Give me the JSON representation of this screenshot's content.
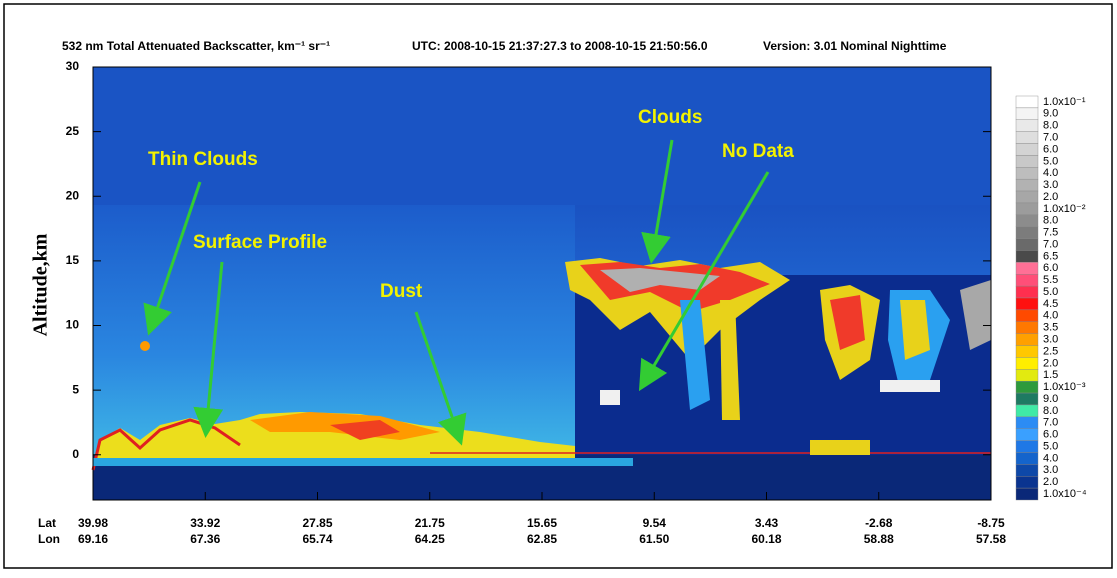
{
  "chart_data": {
    "type": "heatmap",
    "title": "532 nm Total Attenuated Backscatter, km⁻¹ sr⁻¹",
    "time_range": "UTC:  2008-10-15 21:37:27.3  to  2008-10-15 21:50:56.0",
    "version": "Version: 3.01  Nominal  Nighttime",
    "y_label": "Altitude,km",
    "ylim": [
      -3.5,
      30
    ],
    "yticks": [
      0,
      5,
      10,
      15,
      20,
      25,
      30
    ],
    "x_rows": [
      {
        "name": "Lat",
        "labels": [
          39.98,
          33.92,
          27.85,
          21.75,
          15.65,
          9.54,
          3.43,
          -2.68,
          -8.75
        ]
      },
      {
        "name": "Lon",
        "labels": [
          69.16,
          67.36,
          65.74,
          64.25,
          62.85,
          {
            "value": 61.5,
            "label": "61.50"
          },
          60.18,
          58.88,
          57.58
        ]
      }
    ],
    "colorbar": {
      "labels": [
        "1.0x10⁻¹",
        "9.0",
        "8.0",
        "7.0",
        "6.0",
        "5.0",
        "4.0",
        "3.0",
        "2.0",
        "1.0x10⁻²",
        "8.0",
        "7.5",
        "7.0",
        "6.5",
        "6.0",
        "5.5",
        "5.0",
        "4.5",
        "4.0",
        "3.5",
        "3.0",
        "2.5",
        "2.0",
        "1.5",
        "1.0x10⁻³",
        "9.0",
        "8.0",
        "7.0",
        "6.0",
        "5.0",
        "4.0",
        "3.0",
        "2.0",
        "1.0x10⁻⁴"
      ],
      "colors": [
        "#ffffff",
        "#f4f4f4",
        "#e9e9e9",
        "#dedede",
        "#d3d3d3",
        "#c8c8c8",
        "#bdbdbd",
        "#b2b2b2",
        "#a7a7a7",
        "#9c9c9c",
        "#8c8c8c",
        "#7c7c7c",
        "#6a6a6a",
        "#4a4a4a",
        "#ff7096",
        "#ff4f78",
        "#ff2f4f",
        "#ff1010",
        "#ff4a00",
        "#ff7800",
        "#ffa000",
        "#ffc800",
        "#ffee00",
        "#e2ea10",
        "#2e9a3c",
        "#1e7a62",
        "#40eaa6",
        "#2c8cf4",
        "#3aa0ff",
        "#1f78e6",
        "#1464cc",
        "#0e48a8",
        "#0a3490",
        "#0a2878"
      ]
    },
    "annotations": [
      "Thin Clouds",
      "Surface Profile",
      "Dust",
      "Clouds",
      "No Data"
    ]
  }
}
